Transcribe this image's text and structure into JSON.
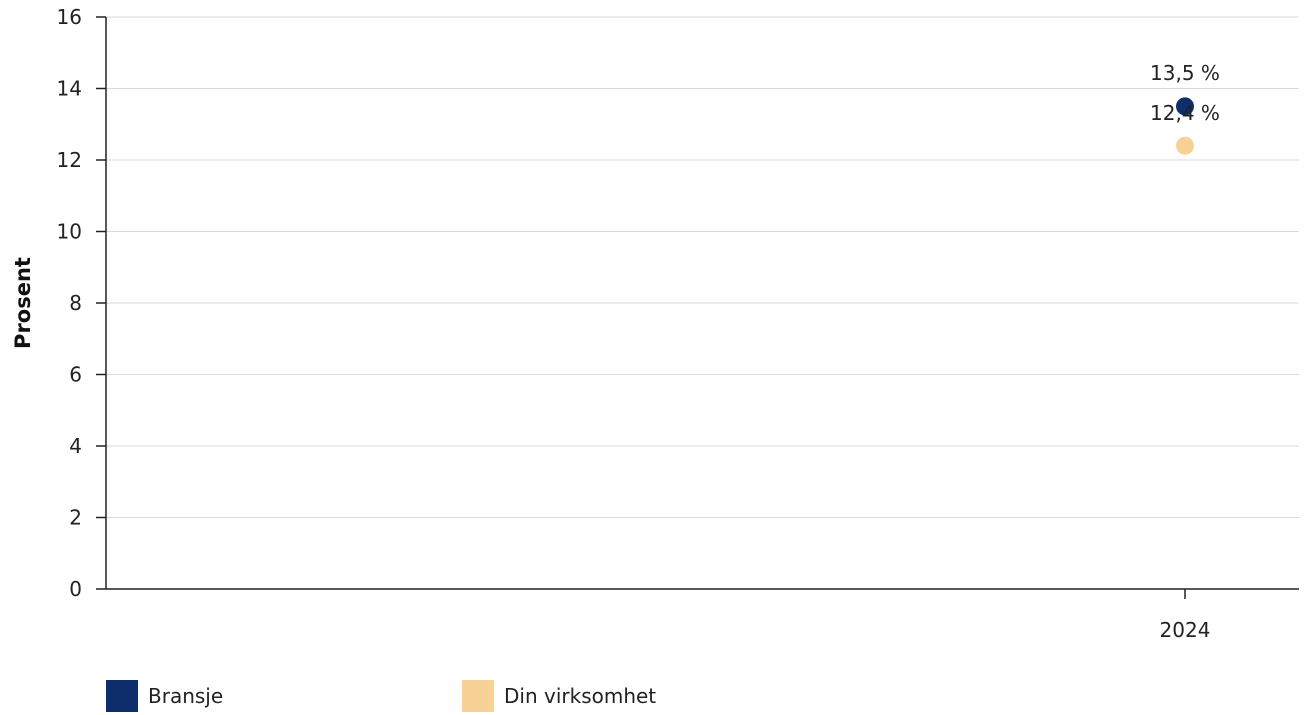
{
  "chart_data": {
    "type": "scatter",
    "categories": [
      "2024"
    ],
    "ylabel": "Prosent",
    "ylim": [
      0,
      16
    ],
    "yticks": [
      0,
      2,
      4,
      6,
      8,
      10,
      12,
      14,
      16
    ],
    "grid": true,
    "legend_position": "bottom-left",
    "series": [
      {
        "name": "Bransje",
        "color": "#0d2d6b",
        "values": [
          13.5
        ],
        "labels": [
          "13,5 %"
        ]
      },
      {
        "name": "Din virksomhet",
        "color": "#f8d196",
        "values": [
          12.4
        ],
        "labels": [
          "12,4 %"
        ]
      }
    ]
  }
}
